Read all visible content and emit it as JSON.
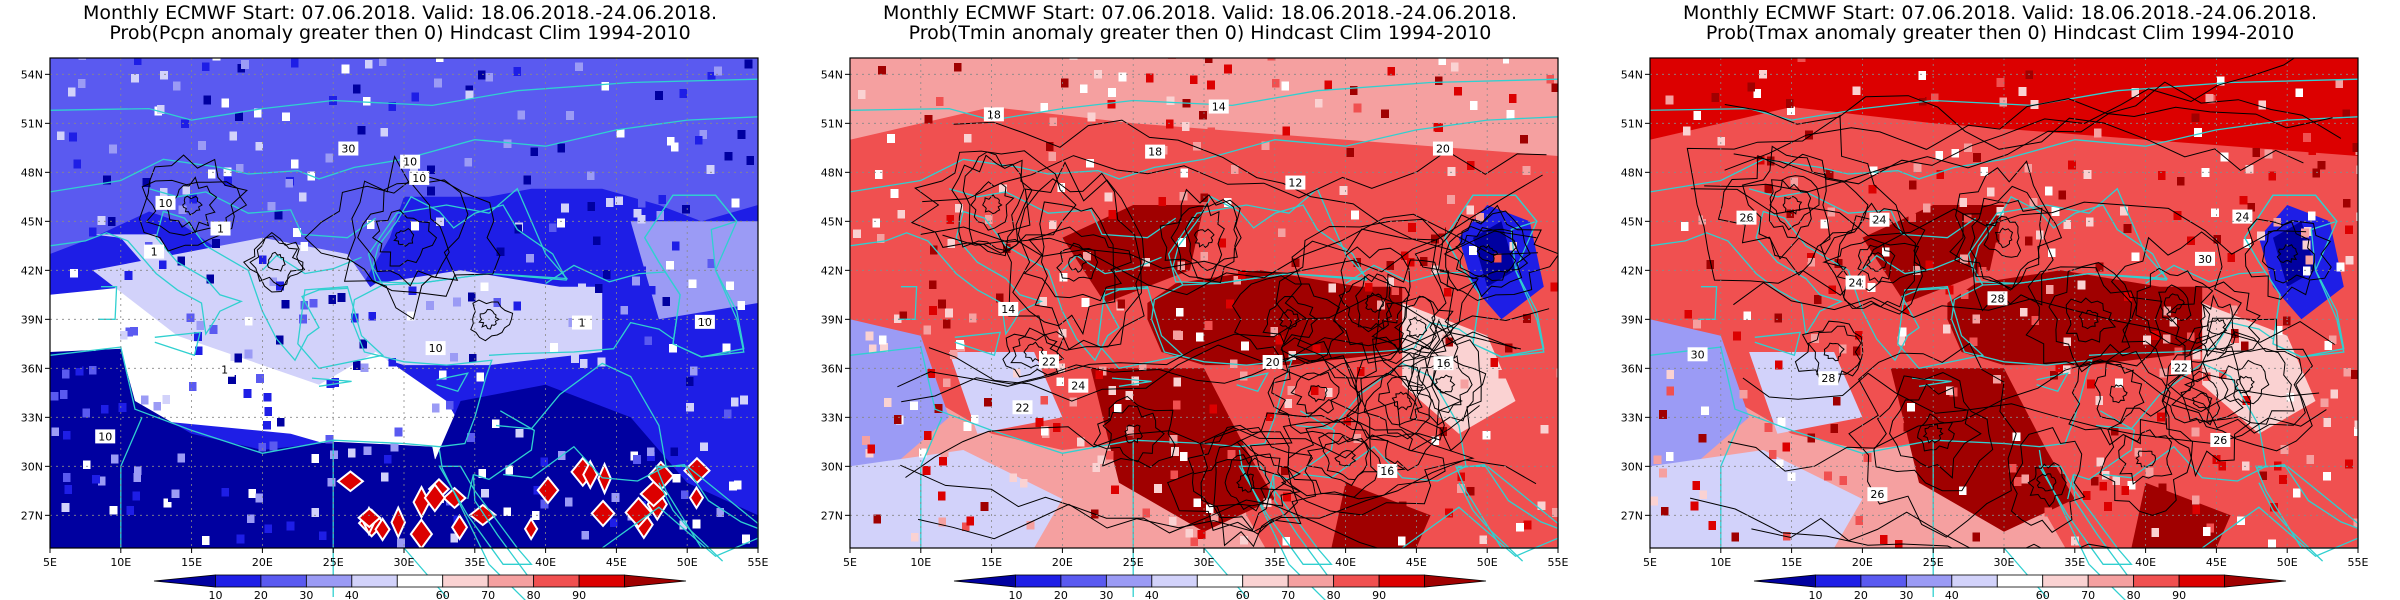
{
  "panels": [
    {
      "title_line1": "Monthly ECMWF Start: 07.06.2018. Valid: 18.06.2018.-24.06.2018.",
      "title_line2": "Prob(Pcpn anomaly greater then 0) Hindcast Clim 1994-2010",
      "variable": "Pcpn",
      "contour_labels": [
        "30",
        "10",
        "10",
        "10",
        "10",
        "10",
        "10",
        "1",
        "1",
        "1",
        "1"
      ]
    },
    {
      "title_line1": "Monthly ECMWF Start: 07.06.2018. Valid: 18.06.2018.-24.06.2018.",
      "title_line2": "Prob(Tmin anomaly greater then 0) Hindcast Clim 1994-2010",
      "variable": "Tmin",
      "contour_labels": [
        "12",
        "14",
        "16",
        "18",
        "20",
        "22",
        "24",
        "16",
        "14",
        "20",
        "22",
        "18"
      ]
    },
    {
      "title_line1": "Monthly ECMWF Start: 07.06.2018. Valid: 18.06.2018.-24.06.2018.",
      "title_line2": "Prob(Tmax anomaly greater then 0) Hindcast Clim 1994-2010",
      "variable": "Tmax",
      "contour_labels": [
        "24",
        "26",
        "28",
        "30",
        "22",
        "24",
        "26",
        "28",
        "24",
        "30",
        "26"
      ]
    }
  ],
  "axes": {
    "lon_labels": [
      "5E",
      "10E",
      "15E",
      "20E",
      "25E",
      "30E",
      "35E",
      "40E",
      "45E",
      "50E",
      "55E"
    ],
    "lat_labels": [
      "54N",
      "51N",
      "48N",
      "45N",
      "42N",
      "39N",
      "36N",
      "33N",
      "30N",
      "27N"
    ]
  },
  "colorbar": {
    "labels": [
      "10",
      "20",
      "30",
      "40",
      "60",
      "70",
      "80",
      "90"
    ],
    "colors": [
      "#0000a0",
      "#1e1ee6",
      "#5a5af0",
      "#9b9bf5",
      "#d2d2fa",
      "#ffffff",
      "#fad2d2",
      "#f5a0a0",
      "#f05050",
      "#dc0000",
      "#a00000"
    ]
  },
  "palette": {
    "coast": "#30d0d0",
    "contour": "#000000",
    "grid": "#888888"
  }
}
